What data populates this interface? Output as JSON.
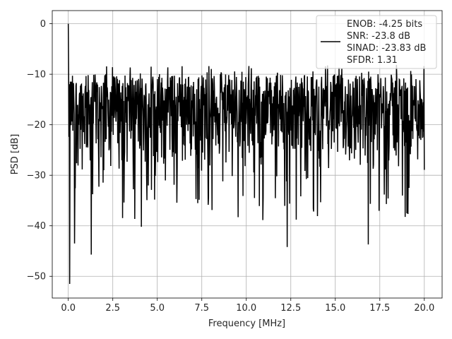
{
  "chart_data": {
    "type": "line",
    "title": "",
    "xlabel": "Frequency [MHz]",
    "ylabel": "PSD [dB]",
    "xlim": [
      -0.9,
      21.0
    ],
    "ylim": [
      -54.3,
      2.6
    ],
    "grid": true,
    "legend_position": "top-right",
    "line_color": "#000000",
    "x_ticks": [
      0.0,
      2.5,
      5.0,
      7.5,
      10.0,
      12.5,
      15.0,
      17.5,
      20.0
    ],
    "x_tick_labels": [
      "0.0",
      "2.5",
      "5.0",
      "7.5",
      "10.0",
      "12.5",
      "15.0",
      "17.5",
      "20.0"
    ],
    "y_ticks": [
      0,
      -10,
      -20,
      -30,
      -40,
      -50
    ],
    "y_tick_labels": [
      "0",
      "−10",
      "−20",
      "−30",
      "−40",
      "−50"
    ],
    "legend_lines": [
      "ENOB: -4.25 bits",
      "SNR: -23.8 dB",
      "SINAD: -23.83 dB",
      "SFDR: 1.31"
    ],
    "series": [
      {
        "x_range": [
          0.0,
          20.0
        ],
        "points": 1024,
        "peaks": [
          {
            "x": 0.0,
            "y": 0.0
          }
        ],
        "minima": [
          {
            "x": 0.08,
            "y": -51.5
          },
          {
            "x": 0.35,
            "y": -43.5
          },
          {
            "x": 1.3,
            "y": -45.7
          },
          {
            "x": 4.1,
            "y": -40.2
          },
          {
            "x": 12.3,
            "y": -44.2
          },
          {
            "x": 16.85,
            "y": -43.7
          }
        ],
        "typical_upper": -10,
        "typical_lower": -30
      }
    ]
  }
}
